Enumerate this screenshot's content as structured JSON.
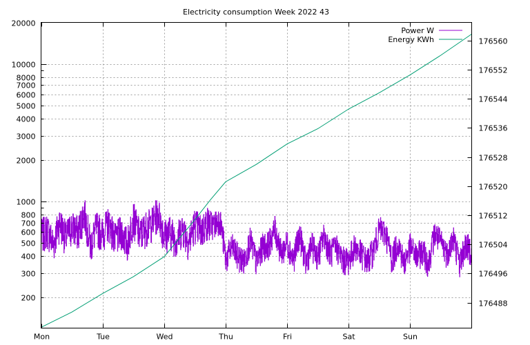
{
  "chart_data": {
    "type": "line",
    "title": "Electricity consumption Week 2022 43",
    "xlabel": "",
    "ylabel": "",
    "y2label": "",
    "x_range_days": [
      0,
      7
    ],
    "x_ticks": [
      {
        "label": "Mon",
        "day": 0
      },
      {
        "label": "Tue",
        "day": 1
      },
      {
        "label": "Wed",
        "day": 2
      },
      {
        "label": "Thu",
        "day": 3
      },
      {
        "label": "Fri",
        "day": 4
      },
      {
        "label": "Sat",
        "day": 5
      },
      {
        "label": "Sun",
        "day": 6
      }
    ],
    "y_scale": "log",
    "ylim": [
      120,
      20000
    ],
    "y_ticks": [
      {
        "label": "200",
        "value": 200
      },
      {
        "label": "300",
        "value": 300
      },
      {
        "label": "400",
        "value": 400
      },
      {
        "label": "500",
        "value": 500
      },
      {
        "label": "600",
        "value": 600
      },
      {
        "label": "700",
        "value": 700
      },
      {
        "label": "800",
        "value": 800
      },
      {
        "label": "1000",
        "value": 1000
      },
      {
        "label": "2000",
        "value": 2000
      },
      {
        "label": "3000",
        "value": 3000
      },
      {
        "label": "4000",
        "value": 4000
      },
      {
        "label": "5000",
        "value": 5000
      },
      {
        "label": "6000",
        "value": 6000
      },
      {
        "label": "7000",
        "value": 7000
      },
      {
        "label": "8000",
        "value": 8000
      },
      {
        "label": "10000",
        "value": 10000
      },
      {
        "label": "20000",
        "value": 20000
      }
    ],
    "y2_scale": "linear",
    "y2lim": [
      176481,
      176565
    ],
    "y2_ticks": [
      {
        "label": "176488",
        "value": 176488
      },
      {
        "label": "176496",
        "value": 176496
      },
      {
        "label": "176504",
        "value": 176504
      },
      {
        "label": "176512",
        "value": 176512
      },
      {
        "label": "176520",
        "value": 176520
      },
      {
        "label": "176528",
        "value": 176528
      },
      {
        "label": "176536",
        "value": 176536
      },
      {
        "label": "176544",
        "value": 176544
      },
      {
        "label": "176552",
        "value": 176552
      },
      {
        "label": "176560",
        "value": 176560
      }
    ],
    "grid": true,
    "legend": "top-right",
    "series": [
      {
        "name": "Power W",
        "axis": "y",
        "color": "#9400d3",
        "x": [
          0.0,
          0.1,
          0.2,
          0.3,
          0.4,
          0.5,
          0.6,
          0.7,
          0.8,
          0.9,
          1.0,
          1.1,
          1.2,
          1.3,
          1.4,
          1.5,
          1.6,
          1.7,
          1.8,
          1.9,
          2.0,
          2.1,
          2.2,
          2.3,
          2.4,
          2.5,
          2.6,
          2.7,
          2.8,
          2.9,
          3.0,
          3.1,
          3.2,
          3.3,
          3.4,
          3.5,
          3.6,
          3.7,
          3.8,
          3.9,
          4.0,
          4.1,
          4.2,
          4.3,
          4.4,
          4.5,
          4.6,
          4.7,
          4.8,
          4.9,
          5.0,
          5.1,
          5.2,
          5.3,
          5.4,
          5.5,
          5.6,
          5.7,
          5.8,
          5.9,
          6.0,
          6.1,
          6.2,
          6.3,
          6.4,
          6.5,
          6.6,
          6.7,
          6.8,
          6.9,
          7.0
        ],
        "values": [
          560,
          620,
          480,
          700,
          540,
          650,
          590,
          820,
          470,
          640,
          580,
          700,
          520,
          600,
          480,
          750,
          560,
          640,
          690,
          820,
          560,
          600,
          520,
          640,
          500,
          680,
          600,
          700,
          640,
          720,
          360,
          450,
          380,
          350,
          500,
          340,
          450,
          470,
          600,
          400,
          480,
          360,
          550,
          340,
          460,
          380,
          540,
          400,
          450,
          360,
          360,
          450,
          400,
          350,
          420,
          600,
          560,
          360,
          480,
          340,
          450,
          380,
          420,
          340,
          560,
          480,
          400,
          520,
          340,
          460,
          420
        ]
      },
      {
        "name": "Energy KWh",
        "axis": "y2",
        "color": "#009e73",
        "x": [
          0.0,
          0.5,
          1.0,
          1.5,
          2.0,
          2.5,
          2.75,
          3.0,
          3.5,
          4.0,
          4.5,
          5.0,
          5.5,
          6.0,
          6.5,
          7.0
        ],
        "values": [
          176481.2,
          176485.4,
          176490.5,
          176495.1,
          176500.6,
          176510.8,
          176516.2,
          176521.2,
          176526.0,
          176531.6,
          176535.8,
          176541.2,
          176545.7,
          176550.6,
          176556.0,
          176561.8
        ]
      }
    ]
  }
}
